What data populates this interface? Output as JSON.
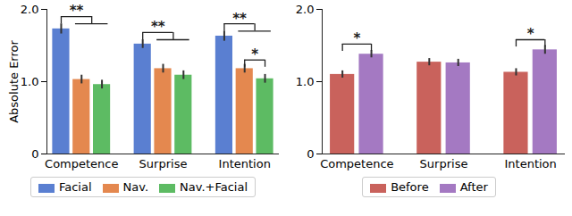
{
  "chart_data": [
    {
      "type": "bar",
      "y_label": "Absolute Error",
      "categories": [
        "Competence",
        "Surprise",
        "Intention"
      ],
      "series": [
        {
          "name": "Facial",
          "color": "#5a7fd1",
          "values": [
            1.73,
            1.52,
            1.63
          ],
          "errors": [
            0.07,
            0.06,
            0.07
          ]
        },
        {
          "name": "Nav.",
          "color": "#e4884f",
          "values": [
            1.03,
            1.18,
            1.18
          ],
          "errors": [
            0.06,
            0.06,
            0.06
          ]
        },
        {
          "name": "Nav.+Facial",
          "color": "#5dbb63",
          "values": [
            0.96,
            1.09,
            1.04
          ],
          "errors": [
            0.06,
            0.06,
            0.06
          ]
        }
      ],
      "ylim": [
        0,
        2
      ],
      "yticks": [
        0,
        {
          "value": 1,
          "label": "1.0"
        },
        {
          "value": 2,
          "label": "2.0"
        }
      ],
      "legend": "bottom",
      "annotations": [
        {
          "category": "Competence",
          "from": "Facial",
          "to": [
            "Nav.",
            "Nav.+Facial"
          ],
          "y": 1.9,
          "label": "**"
        },
        {
          "category": "Surprise",
          "from": "Facial",
          "to": [
            "Nav.",
            "Nav.+Facial"
          ],
          "y": 1.68,
          "label": "**"
        },
        {
          "category": "Intention",
          "from": "Facial",
          "to": [
            "Nav.",
            "Nav.+Facial"
          ],
          "y": 1.8,
          "label": "**"
        },
        {
          "category": "Intention",
          "from": "Nav.",
          "to": [
            "Nav.+Facial"
          ],
          "y": 1.3,
          "label": "*"
        }
      ]
    },
    {
      "type": "bar",
      "categories": [
        "Competence",
        "Surprise",
        "Intention"
      ],
      "series": [
        {
          "name": "Before",
          "color": "#c9625c",
          "values": [
            1.1,
            1.27,
            1.13
          ],
          "errors": [
            0.05,
            0.05,
            0.05
          ]
        },
        {
          "name": "After",
          "color": "#a479c2",
          "values": [
            1.38,
            1.26,
            1.44
          ],
          "errors": [
            0.05,
            0.05,
            0.06
          ]
        }
      ],
      "ylim": [
        0,
        2
      ],
      "yticks": [
        0,
        {
          "value": 1,
          "label": "1.0"
        },
        {
          "value": 2,
          "label": "2.0"
        }
      ],
      "legend": "bottom",
      "annotations": [
        {
          "category": "Competence",
          "from": "Before",
          "to": [
            "After"
          ],
          "y": 1.52,
          "label": "*"
        },
        {
          "category": "Intention",
          "from": "Before",
          "to": [
            "After"
          ],
          "y": 1.58,
          "label": "*"
        }
      ]
    }
  ]
}
